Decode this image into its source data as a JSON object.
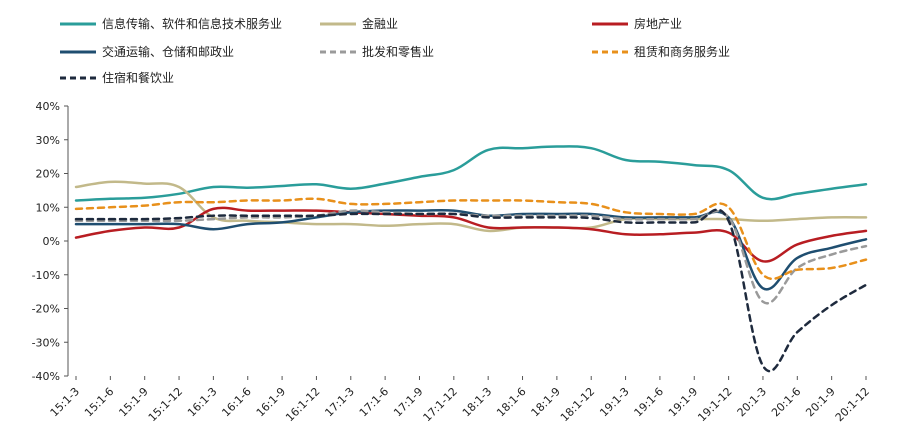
{
  "chart_data": {
    "type": "line",
    "title": "",
    "xlabel": "",
    "ylabel": "",
    "ylim": [
      -40,
      40
    ],
    "yticks": [
      40,
      30,
      20,
      10,
      0,
      -10,
      -20,
      -30,
      -40
    ],
    "ytick_labels": [
      "40%",
      "30%",
      "20%",
      "10%",
      "0%",
      "-10%",
      "-20%",
      "-30%",
      "-40%"
    ],
    "x_tick_labels": [
      "15:1-3",
      "15:1-6",
      "15:1-9",
      "15:1-12",
      "16:1-3",
      "16:1-6",
      "16:1-9",
      "16:1-12",
      "17:1-3",
      "17:1-6",
      "17:1-9",
      "17:1-12",
      "18:1-3",
      "18:1-6",
      "18:1-9",
      "18:1-12",
      "19:1-3",
      "19:1-6",
      "19:1-9",
      "19:1-12",
      "20:1-3",
      "20:1-6",
      "20:1-9",
      "20:1-12"
    ],
    "grid": false,
    "legend": "top",
    "series": [
      {
        "name": "信息传输、软件和信息技术服务业",
        "color": "#2a9d9a",
        "dash": "solid",
        "values": [
          12,
          12.5,
          12.8,
          14,
          16,
          15.8,
          16.3,
          16.8,
          15.5,
          17,
          19,
          21,
          27,
          27.5,
          28,
          27.5,
          24,
          23.5,
          22.5,
          21,
          12.8,
          14,
          15.5,
          16.8
        ]
      },
      {
        "name": "金融业",
        "color": "#c2b98a",
        "dash": "solid",
        "values": [
          16,
          17.5,
          17,
          16,
          7,
          6,
          5.5,
          5,
          5,
          4.5,
          5,
          5,
          3,
          4,
          4,
          4,
          6.5,
          6.5,
          6.5,
          6.5,
          6,
          6.5,
          7,
          7
        ]
      },
      {
        "name": "房地产业",
        "color": "#b81d22",
        "dash": "solid",
        "values": [
          1,
          3,
          4,
          4,
          9.5,
          9,
          9,
          9,
          8.5,
          8,
          7.5,
          7,
          4,
          4,
          4,
          3.5,
          2,
          2,
          2.5,
          2.5,
          -6,
          -1,
          1.5,
          3
        ]
      },
      {
        "name": "交通运输、仓储和邮政业",
        "color": "#1f4e70",
        "dash": "solid",
        "values": [
          5,
          5,
          5,
          5,
          3.5,
          5,
          5.5,
          7,
          8.5,
          9,
          9,
          9,
          7.5,
          8,
          8,
          8,
          7,
          7,
          7,
          7,
          -14,
          -5,
          -2,
          0.5
        ]
      },
      {
        "name": "批发和零售业",
        "color": "#9a9a9a",
        "dash": "dash",
        "values": [
          6,
          6,
          6,
          6,
          6.5,
          7,
          7,
          7.5,
          9,
          8.5,
          8,
          8,
          7.5,
          7.5,
          7.5,
          7.5,
          6.5,
          6.5,
          6.5,
          7,
          -18,
          -8,
          -4,
          -1.5
        ]
      },
      {
        "name": "租赁和商务服务业",
        "color": "#e8901b",
        "dash": "dash",
        "values": [
          9.5,
          10,
          10.5,
          11.5,
          11.5,
          12,
          12,
          12.5,
          11,
          11,
          11.5,
          12,
          12,
          12,
          11.5,
          11,
          8.5,
          8,
          8,
          10,
          -10,
          -8.5,
          -8,
          -5.5
        ]
      },
      {
        "name": "住宿和餐饮业",
        "color": "#1e2a3d",
        "dash": "dash",
        "values": [
          6.5,
          6.5,
          6.5,
          6.8,
          7.5,
          7.5,
          7.5,
          7.5,
          8,
          8,
          8,
          8,
          7,
          7,
          7,
          6.8,
          5.5,
          5.5,
          5.5,
          6,
          -37,
          -27,
          -19,
          -13
        ]
      }
    ]
  }
}
